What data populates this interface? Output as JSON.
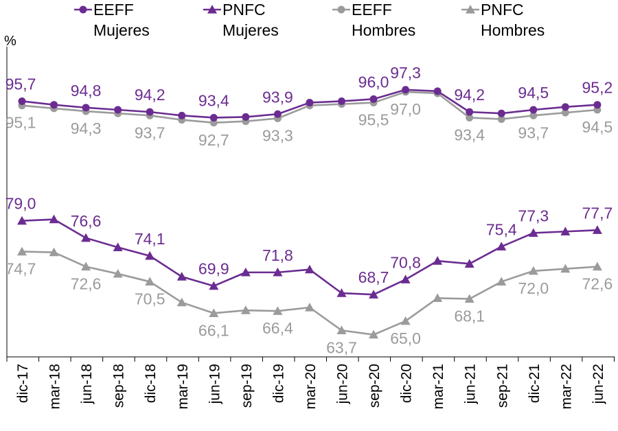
{
  "chart_data": {
    "type": "line",
    "ylabel": "%",
    "ylim": [
      60,
      100
    ],
    "categories": [
      "dic-17",
      "mar-18",
      "jun-18",
      "sep-18",
      "dic-18",
      "mar-19",
      "jun-19",
      "sep-19",
      "dic-19",
      "mar-20",
      "jun-20",
      "sep-20",
      "dic-20",
      "mar-21",
      "jun-21",
      "sep-21",
      "dic-21",
      "mar-22",
      "jun-22"
    ],
    "series": [
      {
        "name": "EEFF Mujeres",
        "legend_lines": [
          "EEFF",
          "Mujeres"
        ],
        "color": "#6b2c91",
        "marker": "circle",
        "values": [
          95.7,
          95.2,
          94.8,
          94.5,
          94.2,
          93.7,
          93.4,
          93.5,
          93.9,
          95.5,
          95.7,
          96.0,
          97.3,
          97.1,
          94.2,
          94.0,
          94.5,
          94.9,
          95.2
        ],
        "labels": [
          "95,7",
          null,
          "94,8",
          null,
          "94,2",
          null,
          "93,4",
          null,
          "93,9",
          null,
          null,
          "96,0",
          "97,3",
          null,
          "94,2",
          null,
          "94,5",
          null,
          "95,2"
        ]
      },
      {
        "name": "PNFC Mujeres",
        "legend_lines": [
          "PNFC",
          "Mujeres"
        ],
        "color": "#6b2c91",
        "marker": "triangle",
        "values": [
          79.0,
          79.2,
          76.6,
          75.3,
          74.1,
          71.2,
          69.9,
          71.8,
          71.8,
          72.2,
          68.9,
          68.7,
          70.8,
          73.4,
          73.0,
          75.4,
          77.3,
          77.5,
          77.7
        ],
        "labels": [
          "79,0",
          null,
          "76,6",
          null,
          "74,1",
          null,
          "69,9",
          null,
          "71,8",
          null,
          null,
          "68,7",
          "70,8",
          null,
          null,
          "75,4",
          "77,3",
          null,
          "77,7"
        ]
      },
      {
        "name": "EEFF Hombres",
        "legend_lines": [
          "EEFF",
          "Hombres"
        ],
        "color": "#9b9b9b",
        "marker": "circle",
        "values": [
          95.1,
          94.7,
          94.3,
          94.0,
          93.7,
          93.1,
          92.7,
          92.9,
          93.3,
          95.1,
          95.3,
          95.5,
          97.0,
          96.8,
          93.4,
          93.2,
          93.7,
          94.1,
          94.5
        ],
        "labels": [
          "95,1",
          null,
          "94,3",
          null,
          "93,7",
          null,
          "92,7",
          null,
          "93,3",
          null,
          null,
          "95,5",
          "97,0",
          null,
          "93,4",
          null,
          "93,7",
          null,
          "94,5"
        ]
      },
      {
        "name": "PNFC Hombres",
        "legend_lines": [
          "PNFC",
          "Hombres"
        ],
        "color": "#9b9b9b",
        "marker": "triangle",
        "values": [
          74.7,
          74.6,
          72.6,
          71.6,
          70.5,
          67.6,
          66.1,
          66.5,
          66.4,
          66.9,
          63.7,
          63.1,
          65.0,
          68.2,
          68.1,
          70.5,
          72.0,
          72.3,
          72.6
        ],
        "labels": [
          "74,7",
          null,
          "72,6",
          null,
          "70,5",
          null,
          "66,1",
          null,
          "66,4",
          null,
          "63,7",
          null,
          "65,0",
          null,
          "68,1",
          null,
          "72,0",
          null,
          "72,6"
        ]
      }
    ]
  }
}
